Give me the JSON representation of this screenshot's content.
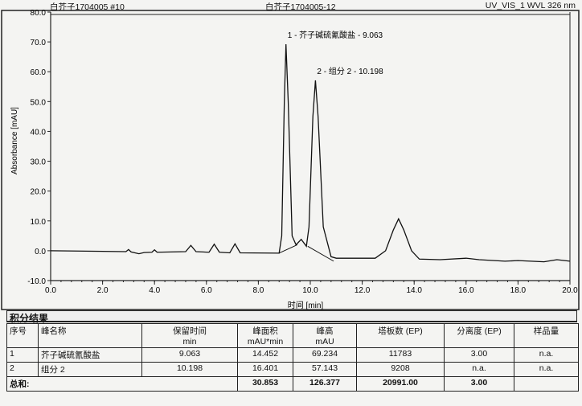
{
  "header": {
    "left": "白芥子1704005 #10",
    "center": "白芥子1704005-12",
    "right": "UV_VIS_1 WVL 326 nm"
  },
  "chart_data": {
    "type": "line",
    "xlabel": "时间 [min]",
    "ylabel": "Absorbance [mAU]",
    "xlim": [
      0,
      20
    ],
    "ylim": [
      -10,
      80
    ],
    "xticks": [
      "0.0",
      "2.0",
      "4.0",
      "6.0",
      "8.0",
      "10.0",
      "12.0",
      "14.0",
      "16.0",
      "18.0",
      "20.0"
    ],
    "yticks": [
      "-10.0",
      "0.0",
      "10.0",
      "20.0",
      "30.0",
      "40.0",
      "50.0",
      "60.0",
      "70.0",
      "80.0"
    ],
    "grid": false,
    "series": [
      {
        "points": [
          [
            0,
            0
          ],
          [
            2.9,
            -0.3
          ],
          [
            3.0,
            0.4
          ],
          [
            3.1,
            -0.4
          ],
          [
            3.4,
            -1.0
          ],
          [
            3.6,
            -0.6
          ],
          [
            3.9,
            -0.5
          ],
          [
            4.0,
            0.3
          ],
          [
            4.1,
            -0.5
          ],
          [
            5.2,
            -0.3
          ],
          [
            5.4,
            1.8
          ],
          [
            5.6,
            -0.3
          ],
          [
            6.1,
            -0.5
          ],
          [
            6.3,
            2.2
          ],
          [
            6.5,
            -0.5
          ],
          [
            6.9,
            -0.7
          ],
          [
            7.1,
            2.3
          ],
          [
            7.3,
            -0.7
          ],
          [
            8.8,
            -0.8
          ],
          [
            8.9,
            5
          ],
          [
            9.0,
            50
          ],
          [
            9.063,
            69.2
          ],
          [
            9.15,
            50
          ],
          [
            9.3,
            5
          ],
          [
            9.45,
            2
          ],
          [
            9.65,
            3.8
          ],
          [
            9.85,
            1.5
          ],
          [
            9.95,
            8
          ],
          [
            10.1,
            45
          ],
          [
            10.198,
            57.1
          ],
          [
            10.3,
            45
          ],
          [
            10.5,
            8
          ],
          [
            10.8,
            -2
          ],
          [
            11,
            -2.5
          ],
          [
            12.5,
            -2.5
          ],
          [
            12.9,
            0
          ],
          [
            13.2,
            7
          ],
          [
            13.4,
            10.7
          ],
          [
            13.6,
            7
          ],
          [
            13.9,
            0
          ],
          [
            14.2,
            -2.8
          ],
          [
            15,
            -3
          ],
          [
            16,
            -2.5
          ],
          [
            16.5,
            -3
          ],
          [
            17.5,
            -3.5
          ],
          [
            18,
            -3.3
          ],
          [
            19,
            -3.7
          ],
          [
            19.5,
            -3
          ],
          [
            20,
            -3.5
          ]
        ]
      }
    ],
    "integration_baselines": [
      [
        [
          8.8,
          -0.8
        ],
        [
          9.5,
          2.0
        ]
      ],
      [
        [
          9.9,
          1.5
        ],
        [
          10.9,
          -3.5
        ]
      ]
    ],
    "peak_labels": [
      {
        "x": 9.063,
        "y": 69.2,
        "text": "1 - 芥子碱硫氰酸盐 - 9.063"
      },
      {
        "x": 10.198,
        "y": 57.1,
        "text": "2 - 组分 2 - 10.198"
      }
    ]
  },
  "results": {
    "title": "积分结果",
    "columns": [
      [
        "序号",
        ""
      ],
      [
        "峰名称",
        ""
      ],
      [
        "保留时间",
        "min"
      ],
      [
        "峰面积",
        "mAU*min"
      ],
      [
        "峰高",
        "mAU"
      ],
      [
        "塔板数 (EP)",
        ""
      ],
      [
        "分离度 (EP)",
        ""
      ],
      [
        "样品量",
        ""
      ]
    ],
    "rows": [
      [
        "1",
        "芥子碱硫氰酸盐",
        "9.063",
        "14.452",
        "69.234",
        "11783",
        "3.00",
        "n.a."
      ],
      [
        "2",
        "组分 2",
        "10.198",
        "16.401",
        "57.143",
        "9208",
        "n.a.",
        "n.a."
      ]
    ],
    "total": [
      "总和:",
      "",
      "",
      "30.853",
      "126.377",
      "20991.00",
      "3.00",
      ""
    ]
  }
}
